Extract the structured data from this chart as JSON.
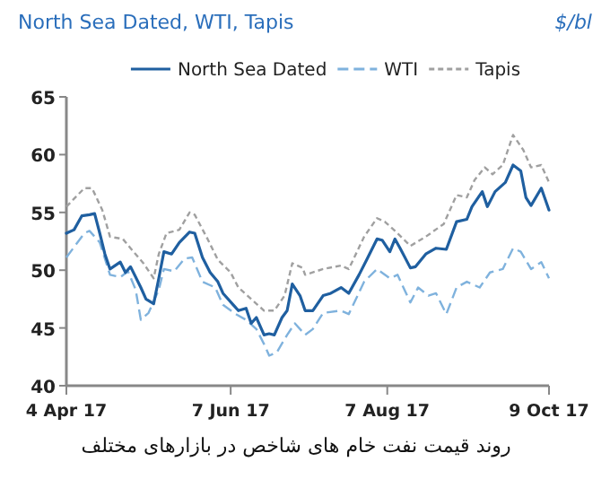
{
  "chart_data": {
    "type": "line",
    "title": "North Sea Dated, WTI, Tapis",
    "ylabel": "$/bl",
    "annotations": [
      "روند قیمت نفت خام های شاخص در بازارهای مختلف"
    ],
    "xlim": [
      "2017-04-04",
      "2017-10-09"
    ],
    "xticks": [
      {
        "value": "2017-04-04",
        "label": "4 Apr 17"
      },
      {
        "value": "2017-06-07",
        "label": "7 Jun 17"
      },
      {
        "value": "2017-08-07",
        "label": "7 Aug 17"
      },
      {
        "value": "2017-10-09",
        "label": "9 Oct 17"
      }
    ],
    "ylim": [
      40,
      65
    ],
    "yticks": [
      40,
      45,
      50,
      55,
      60,
      65
    ],
    "grid": false,
    "legend": "top",
    "series": [
      {
        "name": "North Sea Dated",
        "color": "#1f5fa0",
        "line_style": "solid",
        "x": [
          "2017-04-04",
          "2017-04-07",
          "2017-04-10",
          "2017-04-13",
          "2017-04-15",
          "2017-04-17",
          "2017-04-19",
          "2017-04-21",
          "2017-04-25",
          "2017-04-27",
          "2017-04-29",
          "2017-05-03",
          "2017-05-05",
          "2017-05-08",
          "2017-05-10",
          "2017-05-12",
          "2017-05-15",
          "2017-05-18",
          "2017-05-22",
          "2017-05-24",
          "2017-05-27",
          "2017-05-30",
          "2017-06-02",
          "2017-06-04",
          "2017-06-08",
          "2017-06-10",
          "2017-06-13",
          "2017-06-15",
          "2017-06-17",
          "2017-06-20",
          "2017-06-22",
          "2017-06-24",
          "2017-06-27",
          "2017-06-29",
          "2017-07-01",
          "2017-07-04",
          "2017-07-06",
          "2017-07-09",
          "2017-07-13",
          "2017-07-16",
          "2017-07-20",
          "2017-07-23",
          "2017-07-27",
          "2017-07-30",
          "2017-08-03",
          "2017-08-05",
          "2017-08-08",
          "2017-08-10",
          "2017-08-12",
          "2017-08-16",
          "2017-08-18",
          "2017-08-22",
          "2017-08-26",
          "2017-08-30",
          "2017-09-03",
          "2017-09-07",
          "2017-09-09",
          "2017-09-13",
          "2017-09-15",
          "2017-09-18",
          "2017-09-22",
          "2017-09-25",
          "2017-09-28",
          "2017-09-30",
          "2017-10-02",
          "2017-10-06",
          "2017-10-09"
        ],
        "values": [
          53.2,
          53.5,
          54.7,
          54.8,
          54.9,
          53.2,
          51.4,
          50.1,
          50.7,
          49.8,
          50.3,
          48.5,
          47.5,
          47.1,
          49.3,
          51.6,
          51.4,
          52.4,
          53.3,
          53.2,
          51.1,
          49.8,
          49.0,
          48.0,
          47.0,
          46.5,
          46.7,
          45.4,
          45.9,
          44.4,
          44.5,
          44.4,
          45.9,
          46.5,
          48.8,
          47.8,
          46.5,
          46.5,
          47.8,
          48.0,
          48.5,
          48.0,
          49.6,
          50.9,
          52.7,
          52.6,
          51.6,
          52.7,
          51.9,
          50.2,
          50.3,
          51.4,
          51.9,
          51.8,
          54.2,
          54.4,
          55.5,
          56.8,
          55.5,
          56.8,
          57.6,
          59.1,
          58.6,
          56.3,
          55.6,
          57.1,
          55.2
        ]
      },
      {
        "name": "WTI",
        "color": "#7fb2dd",
        "line_style": "dashed",
        "x": [
          "2017-04-04",
          "2017-04-11",
          "2017-04-13",
          "2017-04-17",
          "2017-04-21",
          "2017-04-25",
          "2017-04-28",
          "2017-05-01",
          "2017-05-03",
          "2017-05-06",
          "2017-05-10",
          "2017-05-12",
          "2017-05-16",
          "2017-05-20",
          "2017-05-23",
          "2017-05-27",
          "2017-06-01",
          "2017-06-04",
          "2017-06-09",
          "2017-06-13",
          "2017-06-17",
          "2017-06-20",
          "2017-06-22",
          "2017-06-25",
          "2017-06-29",
          "2017-07-02",
          "2017-07-06",
          "2017-07-09",
          "2017-07-13",
          "2017-07-20",
          "2017-07-23",
          "2017-07-29",
          "2017-08-03",
          "2017-08-08",
          "2017-08-11",
          "2017-08-16",
          "2017-08-19",
          "2017-08-23",
          "2017-08-26",
          "2017-08-30",
          "2017-09-03",
          "2017-09-07",
          "2017-09-12",
          "2017-09-16",
          "2017-09-21",
          "2017-09-25",
          "2017-09-28",
          "2017-10-02",
          "2017-10-06",
          "2017-10-09"
        ],
        "values": [
          51.1,
          53.2,
          53.4,
          52.4,
          49.6,
          49.4,
          49.9,
          48.3,
          45.7,
          46.3,
          48.3,
          50.1,
          49.9,
          51.0,
          51.1,
          49.0,
          48.5,
          47.0,
          46.2,
          45.7,
          44.9,
          43.6,
          42.6,
          42.9,
          44.4,
          45.4,
          44.4,
          44.9,
          46.3,
          46.5,
          46.2,
          49.0,
          50.1,
          49.3,
          49.6,
          47.2,
          48.5,
          47.8,
          48.0,
          46.2,
          48.5,
          49.0,
          48.5,
          49.8,
          50.1,
          51.9,
          51.6,
          50.1,
          50.7,
          49.3
        ]
      },
      {
        "name": "Tapis",
        "color": "#a0a0a0",
        "line_style": "dotted",
        "x": [
          "2017-04-04",
          "2017-04-11",
          "2017-04-14",
          "2017-04-18",
          "2017-04-21",
          "2017-04-26",
          "2017-04-29",
          "2017-05-04",
          "2017-05-08",
          "2017-05-10",
          "2017-05-13",
          "2017-05-18",
          "2017-05-22",
          "2017-05-24",
          "2017-05-29",
          "2017-06-02",
          "2017-06-07",
          "2017-06-10",
          "2017-06-15",
          "2017-06-20",
          "2017-06-24",
          "2017-06-28",
          "2017-07-01",
          "2017-07-05",
          "2017-07-06",
          "2017-07-13",
          "2017-07-20",
          "2017-07-23",
          "2017-07-29",
          "2017-08-03",
          "2017-08-06",
          "2017-08-10",
          "2017-08-16",
          "2017-08-22",
          "2017-08-29",
          "2017-09-03",
          "2017-09-07",
          "2017-09-10",
          "2017-09-14",
          "2017-09-17",
          "2017-09-21",
          "2017-09-25",
          "2017-09-29",
          "2017-10-02",
          "2017-10-06",
          "2017-10-09"
        ],
        "values": [
          55.5,
          57.1,
          57.1,
          55.2,
          52.9,
          52.7,
          51.9,
          50.6,
          49.3,
          51.4,
          53.2,
          53.5,
          55.0,
          54.8,
          52.7,
          50.9,
          49.8,
          48.5,
          47.5,
          46.5,
          46.5,
          47.8,
          50.6,
          50.2,
          49.6,
          50.1,
          50.4,
          50.1,
          52.9,
          54.5,
          54.2,
          53.4,
          52.1,
          52.9,
          54.0,
          56.5,
          56.3,
          57.8,
          58.9,
          58.3,
          59.1,
          61.7,
          60.4,
          58.9,
          59.1,
          57.6
        ]
      }
    ]
  }
}
